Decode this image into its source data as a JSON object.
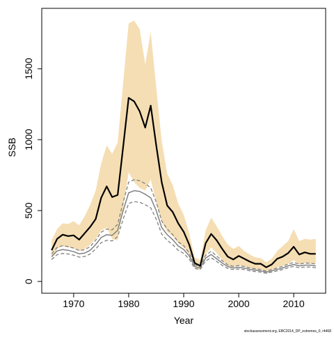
{
  "chart_data": {
    "type": "line",
    "x_label": "Year",
    "y_label": "SSB",
    "footnote": "stockassessment.org, EBC2014_DP_extremes_0, r4468",
    "x": [
      1966,
      1967,
      1968,
      1969,
      1970,
      1971,
      1972,
      1973,
      1974,
      1975,
      1976,
      1977,
      1978,
      1979,
      1980,
      1981,
      1982,
      1983,
      1984,
      1985,
      1986,
      1987,
      1988,
      1989,
      1990,
      1991,
      1992,
      1993,
      1994,
      1995,
      1996,
      1997,
      1998,
      1999,
      2000,
      2001,
      2002,
      2003,
      2004,
      2005,
      2006,
      2007,
      2008,
      2009,
      2010,
      2011,
      2012,
      2013,
      2014
    ],
    "band": {
      "color": "#f5deb3",
      "upper": [
        290,
        370,
        410,
        405,
        425,
        395,
        460,
        540,
        640,
        830,
        960,
        900,
        980,
        1400,
        1820,
        1840,
        1780,
        1530,
        1760,
        1370,
        990,
        760,
        680,
        550,
        470,
        340,
        170,
        150,
        360,
        450,
        390,
        320,
        260,
        230,
        250,
        215,
        190,
        170,
        165,
        135,
        160,
        215,
        250,
        285,
        370,
        285,
        300,
        295,
        300
      ],
      "lower": [
        160,
        230,
        250,
        240,
        235,
        215,
        230,
        260,
        300,
        360,
        380,
        300,
        290,
        520,
        770,
        700,
        660,
        640,
        720,
        560,
        420,
        350,
        320,
        270,
        240,
        190,
        100,
        80,
        190,
        240,
        200,
        150,
        110,
        100,
        115,
        105,
        95,
        85,
        85,
        70,
        80,
        100,
        110,
        125,
        150,
        120,
        130,
        125,
        125
      ]
    },
    "series": [
      {
        "color": "#808080",
        "dashed": true,
        "width": 1.3,
        "values": [
          195,
          240,
          252,
          246,
          235,
          218,
          224,
          246,
          291,
          347,
          370,
          364,
          403,
          560,
          700,
          717,
          711,
          689,
          661,
          560,
          426,
          370,
          330,
          280,
          252,
          202,
          118,
          106,
          185,
          213,
          179,
          146,
          118,
          106,
          112,
          106,
          95,
          90,
          84,
          73,
          84,
          95,
          106,
          123,
          134,
          123,
          129,
          129,
          123
        ]
      },
      {
        "color": "#808080",
        "dashed": true,
        "width": 1.3,
        "values": [
          154,
          189,
          198,
          194,
          185,
          172,
          176,
          194,
          229,
          273,
          290,
          286,
          317,
          440,
          550,
          563,
          559,
          541,
          519,
          440,
          334,
          290,
          260,
          220,
          198,
          158,
          92,
          84,
          145,
          167,
          141,
          114,
          92,
          84,
          88,
          84,
          75,
          70,
          66,
          57,
          66,
          75,
          84,
          97,
          106,
          97,
          101,
          101,
          97
        ]
      },
      {
        "color": "#808080",
        "dashed": false,
        "width": 1.5,
        "values": [
          175,
          215,
          225,
          220,
          210,
          195,
          200,
          220,
          260,
          310,
          330,
          325,
          360,
          500,
          625,
          640,
          635,
          615,
          590,
          500,
          380,
          330,
          295,
          250,
          225,
          180,
          105,
          95,
          165,
          190,
          160,
          130,
          105,
          95,
          100,
          95,
          85,
          80,
          75,
          65,
          75,
          85,
          95,
          110,
          120,
          110,
          115,
          115,
          110
        ]
      },
      {
        "color": "#000000",
        "dashed": false,
        "width": 2.2,
        "values": [
          220,
          300,
          330,
          320,
          325,
          295,
          340,
          385,
          440,
          590,
          670,
          595,
          610,
          950,
          1295,
          1270,
          1200,
          1085,
          1240,
          960,
          700,
          535,
          490,
          410,
          350,
          260,
          130,
          110,
          270,
          335,
          290,
          230,
          175,
          155,
          180,
          160,
          140,
          125,
          125,
          100,
          120,
          160,
          175,
          200,
          245,
          190,
          205,
          195,
          195
        ]
      }
    ],
    "xlim": [
      1964.2,
      2015.8
    ],
    "ylim": [
      -83,
      1926
    ],
    "xticks": [
      1970,
      1980,
      1990,
      2000,
      2010
    ],
    "yticks": [
      0,
      500,
      1000,
      1500
    ]
  }
}
